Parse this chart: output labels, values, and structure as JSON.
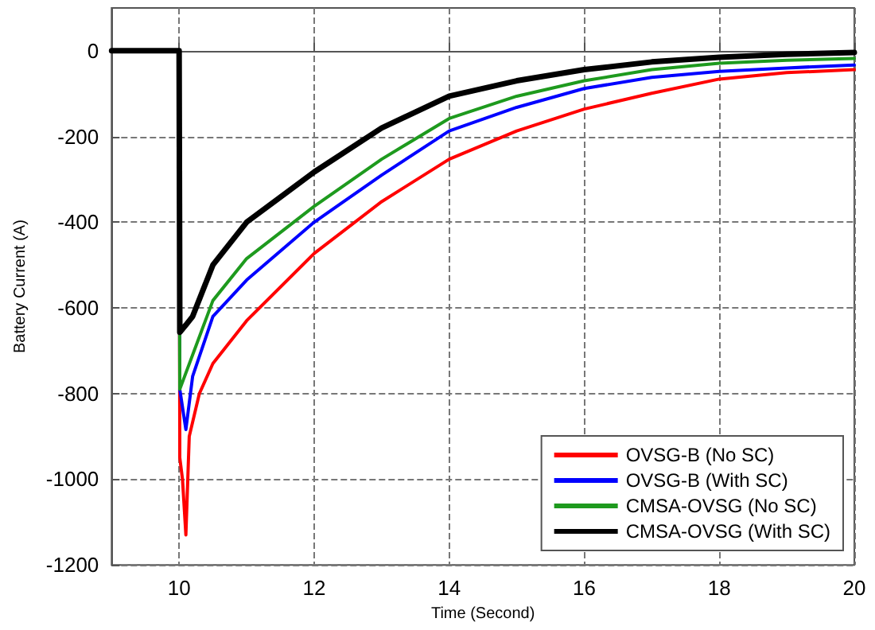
{
  "chart_data": {
    "type": "line",
    "xlabel": "Time (Second)",
    "ylabel": "Battery Current (A)",
    "xlim": [
      9,
      20
    ],
    "xticks": [
      10,
      12,
      14,
      16,
      18,
      20
    ],
    "ylim": [
      -1200,
      100
    ],
    "yticks": [
      -1200,
      -1000,
      -800,
      -600,
      -400,
      -200,
      0
    ],
    "grid": true,
    "legend": "bottom right",
    "marker": "none",
    "line_style": "solid",
    "series": [
      {
        "name": "OVSG-B (No SC)",
        "color": "#ff0000",
        "x": [
          9,
          10,
          10.01,
          10.05,
          10.1,
          10.15,
          10.3,
          10.5,
          11,
          12,
          13,
          14,
          15,
          16,
          17,
          18,
          19,
          20
        ],
        "values": [
          0,
          0,
          -950,
          -1000,
          -1130,
          -900,
          -800,
          -730,
          -630,
          -473,
          -352,
          -253,
          -187,
          -136,
          -99,
          -66,
          -51,
          -44
        ]
      },
      {
        "name": "OVSG-B (With SC)",
        "color": "#0000ff",
        "x": [
          9,
          10,
          10.01,
          10.1,
          10.2,
          10.5,
          11,
          12,
          13,
          14,
          15,
          16,
          17,
          18,
          19,
          20
        ],
        "values": [
          0,
          0,
          -790,
          -884,
          -760,
          -620,
          -535,
          -400,
          -290,
          -187,
          -132,
          -88,
          -62,
          -48,
          -40,
          -33
        ]
      },
      {
        "name": "CMSA-OVSG (No SC)",
        "color": "#1e9a1e",
        "x": [
          9,
          10,
          10.01,
          10.5,
          11,
          12,
          13,
          14,
          15,
          16,
          17,
          18,
          19,
          20
        ],
        "values": [
          0,
          0,
          -790,
          -583,
          -485,
          -363,
          -253,
          -158,
          -106,
          -70,
          -44,
          -29,
          -22,
          -18
        ]
      },
      {
        "name": "CMSA-OVSG (With SC)",
        "color": "#000000",
        "x": [
          9,
          10,
          10.01,
          10.1,
          10.2,
          10.5,
          11,
          12,
          13,
          14,
          15,
          16,
          17,
          18,
          19,
          20
        ],
        "values": [
          0,
          0,
          -657,
          -640,
          -620,
          -500,
          -400,
          -283,
          -180,
          -106,
          -70,
          -44,
          -26,
          -15,
          -8,
          -4
        ]
      }
    ]
  }
}
